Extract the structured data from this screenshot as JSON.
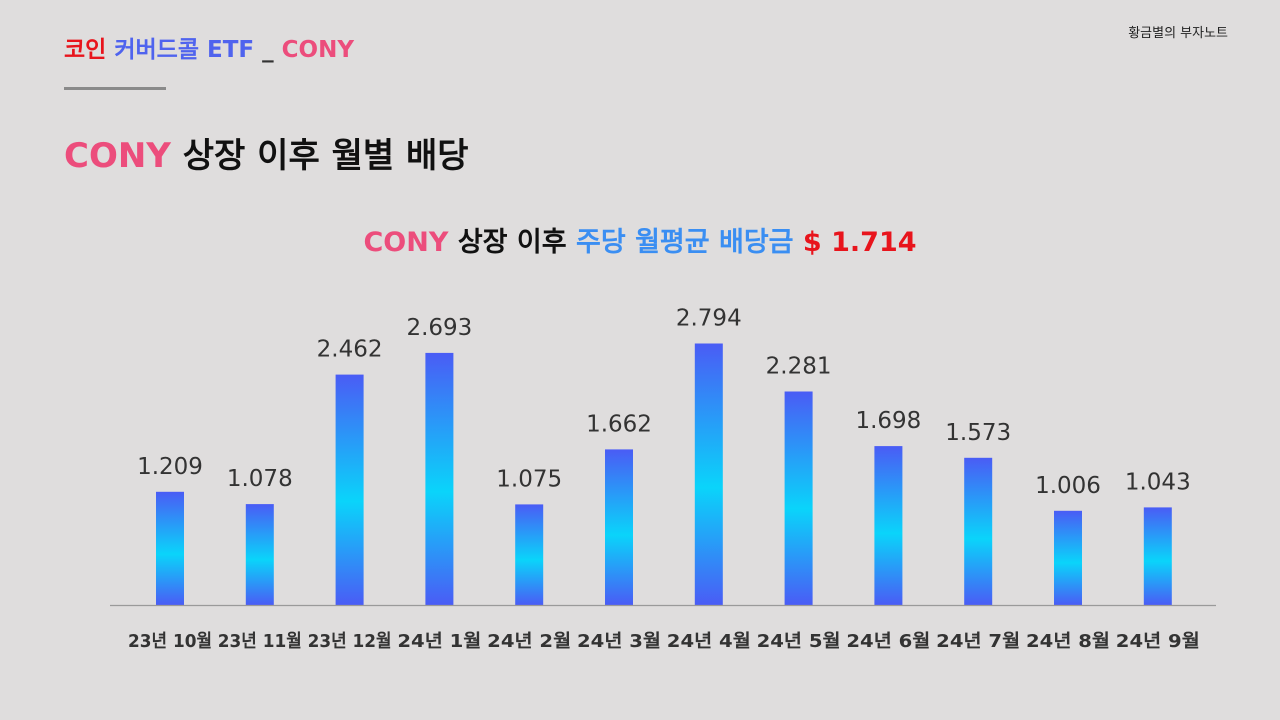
{
  "header": {
    "title_part1": "코인",
    "title_part2": "커버드콜 ETF",
    "title_sep": "_",
    "title_part3": "CONY",
    "brand": "황금별의 부자노트"
  },
  "page_title": {
    "ticker": "CONY",
    "rest": "상장 이후 월별 배당"
  },
  "chart_title": {
    "ticker": "CONY",
    "part1": "상장 이후",
    "part2": "주당 월평균 배당금",
    "value": "$ 1.714"
  },
  "colors": {
    "bar_edge": "#4a5cf5",
    "bar_center": "#0ad4fa",
    "axis": "#9a9a9a",
    "label": "#333333"
  },
  "chart_data": {
    "type": "bar",
    "categories": [
      "23년 10월",
      "23년 11월",
      "23년 12월",
      "24년 1월",
      "24년 2월",
      "24년 3월",
      "24년 4월",
      "24년 5월",
      "24년 6월",
      "24년 7월",
      "24년 8월",
      "24년 9월"
    ],
    "values": [
      1.209,
      1.078,
      2.462,
      2.693,
      1.075,
      1.662,
      2.794,
      2.281,
      1.698,
      1.573,
      1.006,
      1.043
    ],
    "value_labels": [
      "1.209",
      "1.078",
      "2.462",
      "2.693",
      "1.075",
      "1.662",
      "2.794",
      "2.281",
      "1.698",
      "1.573",
      "1.006",
      "1.043"
    ],
    "title": "CONY 상장 이후 주당 월평균 배당금 $ 1.714",
    "xlabel": "",
    "ylabel": "",
    "ylim": [
      0,
      2.9
    ],
    "grid": false,
    "data_labels": true
  }
}
